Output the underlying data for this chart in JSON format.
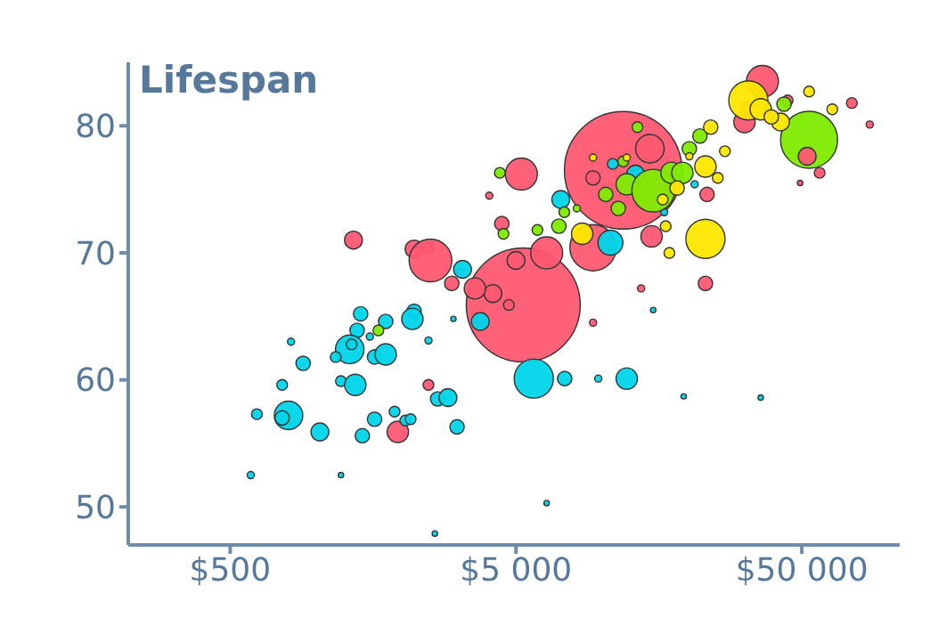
{
  "chart_data": {
    "type": "bubble",
    "ylabel": "Lifespan",
    "log": "x",
    "xlim": [
      220,
      110000
    ],
    "xticks": [
      {
        "value": 500,
        "label": "$500"
      },
      {
        "value": 5000,
        "label": "$5 000"
      },
      {
        "value": 50000,
        "label": "$50 000"
      }
    ],
    "ylim": [
      47,
      85
    ],
    "yticks": [
      50,
      60,
      70,
      80
    ],
    "series": [
      {
        "color": "#ff5872",
        "x": [
          1350,
          2200,
          2470,
          2510,
          2980,
          3200,
          2470,
          1930,
          4460,
          5300,
          5220,
          4030,
          5000,
          6400,
          9300,
          4150,
          4720,
          3590,
          14900,
          23000,
          13700,
          9300,
          11857,
          14700,
          9300,
          23300,
          36400,
          31500,
          32000,
          57700,
          49300,
          74800,
          86400,
          44600
        ],
        "values": [
          71.0,
          70.3,
          70.4,
          69.4,
          67.6,
          68.5,
          59.6,
          55.9,
          72.3,
          65.9,
          76.2,
          74.5,
          69.4,
          70.0,
          70.4,
          66.8,
          65.9,
          67.2,
          71.3,
          67.6,
          67.2,
          64.5,
          76.5,
          78.2,
          75.9,
          74.6,
          83.5,
          80.3,
          81.5,
          76.3,
          75.5,
          81.8,
          80.1,
          82.0
        ],
        "sizes": [
          0.023,
          0.023,
          0.0083,
          0.132,
          0.015,
          0.0037,
          0.0083,
          0.033,
          0.015,
          0.94,
          0.074,
          0.0037,
          0.023,
          0.074,
          0.155,
          0.023,
          0.0083,
          0.033,
          0.033,
          0.015,
          0.0037,
          0.0037,
          1,
          0.059,
          0.015,
          0.015,
          0.074,
          0.033,
          0.0083,
          0.0083,
          0.0021,
          0.0083,
          0.0037,
          0.0083
        ]
      },
      {
        "color": "#00d5e9",
        "x": [
          816,
          900,
          760,
          620,
          800,
          760,
          1030,
          590,
          1220,
          2600,
          1430,
          1390,
          1310,
          1170,
          1330,
          1750,
          1600,
          1750,
          2200,
          2170,
          1540,
          1220,
          1370,
          1880,
          1600,
          1450,
          2050,
          2140,
          2660,
          2890,
          3110,
          2470,
          3020,
          3250,
          3750,
          5770,
          7170,
          10700,
          10900,
          13100,
          7400,
          9700,
          12200,
          15100,
          19300,
          35900,
          6400,
          16500,
          21084
        ],
        "values": [
          63.0,
          61.3,
          59.6,
          57.3,
          57.2,
          57.0,
          55.9,
          52.5,
          52.5,
          47.9,
          65.2,
          63.9,
          62.4,
          61.8,
          62.8,
          64.6,
          61.8,
          62.0,
          65.4,
          64.8,
          63.4,
          59.9,
          59.6,
          57.5,
          56.9,
          55.6,
          56.8,
          56.9,
          58.5,
          58.6,
          56.3,
          63.1,
          64.8,
          68.7,
          64.6,
          60.1,
          74.2,
          70.8,
          77.0,
          76.2,
          60.1,
          60.1,
          60.1,
          65.5,
          58.7,
          58.6,
          50.3,
          73.2,
          75.4
        ],
        "sizes": [
          0.0037,
          0.015,
          0.0083,
          0.0083,
          0.059,
          0.015,
          0.023,
          0.0037,
          0.0021,
          0.0021,
          0.015,
          0.015,
          0.059,
          0.0083,
          0.0083,
          0.015,
          0.015,
          0.033,
          0.015,
          0.033,
          0.0037,
          0.0083,
          0.033,
          0.0083,
          0.015,
          0.015,
          0.0083,
          0.0083,
          0.015,
          0.023,
          0.015,
          0.0037,
          0.0021,
          0.023,
          0.023,
          0.111,
          0.023,
          0.045,
          0.0083,
          0.023,
          0.015,
          0.0037,
          0.033,
          0.0021,
          0.0021,
          0.0021,
          0.0021,
          0.0037,
          0.0037
        ]
      },
      {
        "color": "#7feb00",
        "x": [
          4390,
          5940,
          7060,
          7380,
          8160,
          10300,
          11400,
          12200,
          15100,
          17500,
          19100,
          20200,
          22000,
          13300,
          11857,
          53000,
          43300,
          1650,
          4520
        ],
        "values": [
          76.3,
          71.8,
          72.1,
          73.2,
          73.5,
          74.6,
          73.5,
          75.4,
          74.9,
          76.3,
          76.3,
          78.2,
          79.2,
          79.9,
          77.2,
          78.9,
          81.7,
          63.9,
          71.5
        ],
        "sizes": [
          0.0083,
          0.0083,
          0.015,
          0.0083,
          0.0037,
          0.015,
          0.015,
          0.033,
          0.132,
          0.033,
          0.033,
          0.015,
          0.015,
          0.0083,
          0.0083,
          0.235,
          0.015,
          0.0083,
          0.0083
        ]
      },
      {
        "color": "#ffe700",
        "x": [
          23000,
          8520,
          23000,
          18300,
          24000,
          26900,
          25400,
          16700,
          17200,
          9300,
          12200,
          20200,
          32500,
          35900,
          42100,
          39100,
          53000,
          63900,
          16300
        ],
        "values": [
          71.1,
          71.5,
          76.8,
          75.1,
          79.9,
          78.0,
          75.9,
          72.1,
          70.0,
          77.5,
          77.5,
          77.6,
          82.0,
          81.3,
          80.3,
          80.7,
          82.7,
          81.3,
          74.2
        ],
        "sizes": [
          0.111,
          0.033,
          0.033,
          0.015,
          0.015,
          0.0083,
          0.0083,
          0.0083,
          0.0083,
          0.0037,
          0.0037,
          0.0037,
          0.111,
          0.033,
          0.023,
          0.015,
          0.0083,
          0.0083,
          0.0083
        ]
      },
      {
        "color": "#ff5872",
        "x": [
          52200
        ],
        "values": [
          77.6
        ],
        "sizes": [
          0.023
        ]
      }
    ]
  }
}
